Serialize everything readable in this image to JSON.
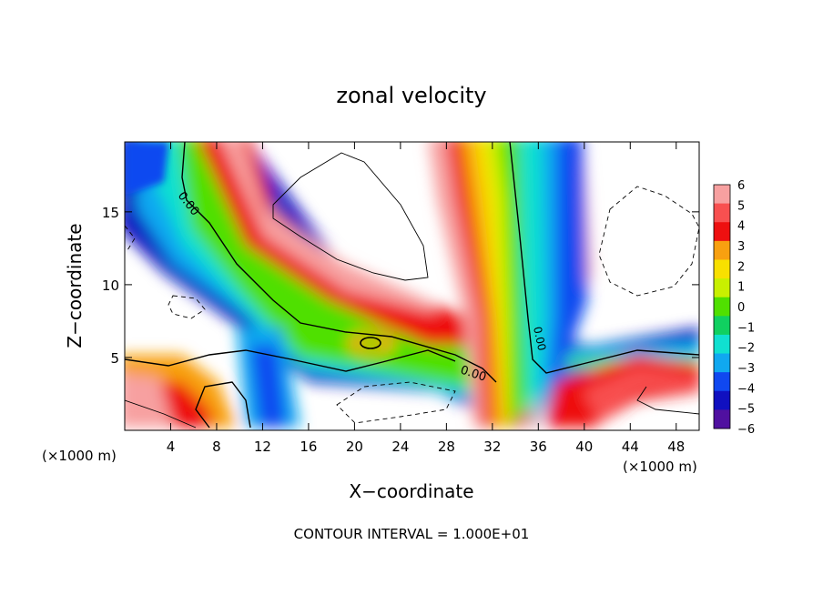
{
  "chart_data": {
    "type": "heatmap",
    "title": "zonal velocity",
    "xlabel": "X−coordinate",
    "ylabel": "Z−coordinate",
    "x_unit_left": "(×1000 m)",
    "x_unit_right": "(×1000 m)",
    "footer": "CONTOUR INTERVAL = 1.000E+01",
    "xlim": [
      0,
      50
    ],
    "ylim": [
      0,
      19.8
    ],
    "x_ticks": [
      4,
      8,
      12,
      16,
      20,
      24,
      28,
      32,
      36,
      40,
      44,
      48
    ],
    "y_ticks": [
      5,
      10,
      15
    ],
    "colorbar": {
      "range": [
        -6,
        6
      ],
      "labels": [
        "6",
        "5",
        "4",
        "3",
        "2",
        "1",
        "0",
        "−1",
        "−2",
        "−3",
        "−4",
        "−5",
        "−6"
      ],
      "colors": [
        "#f7a0a0",
        "#f85050",
        "#ee1010",
        "#f8a010",
        "#f8e000",
        "#c8f000",
        "#50e000",
        "#10d060",
        "#10e0d0",
        "#10a8f0",
        "#1048f0",
        "#1010c0",
        "#5010a0"
      ]
    },
    "contour_labels": [
      {
        "text": "0.00",
        "x": 5.8,
        "y": 15.2
      },
      {
        "text": "0.00",
        "x": 30.8,
        "y": 4.1
      },
      {
        "text": "0.00",
        "x": 35.8,
        "y": 6.8
      }
    ]
  }
}
